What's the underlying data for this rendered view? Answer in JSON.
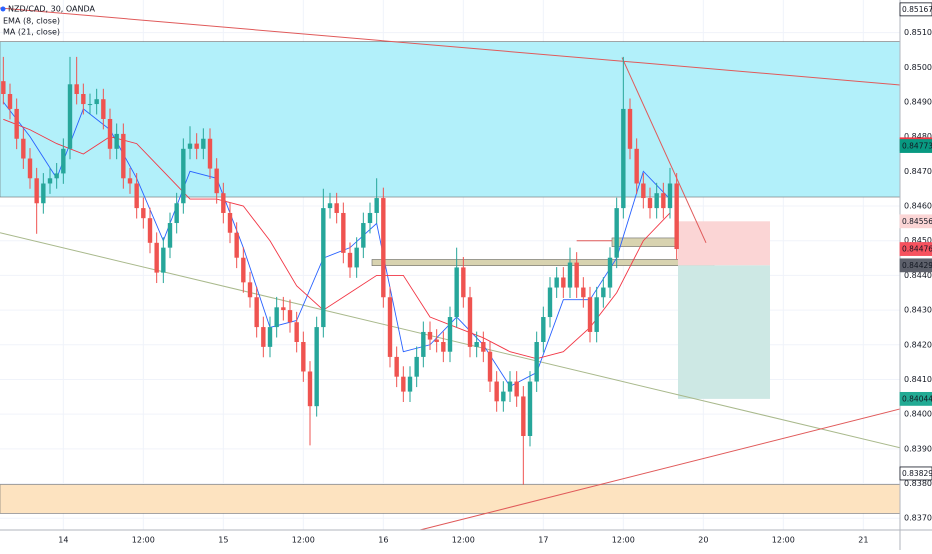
{
  "chart_data": {
    "type": "candlestick",
    "title": "NZD/CAD, 30, OANDA",
    "up_color": "#26a69a",
    "down_color": "#ef5350",
    "xlim": [
      0,
      135
    ],
    "ylim": [
      0.83666,
      0.85194
    ],
    "grid": true,
    "xticks": [
      {
        "value": 9.5,
        "label": "14"
      },
      {
        "value": 21.5,
        "label": "12:00"
      },
      {
        "value": 33.5,
        "label": "15"
      },
      {
        "value": 45.5,
        "label": "12:00"
      },
      {
        "value": 57.5,
        "label": "16"
      },
      {
        "value": 69.5,
        "label": "12:00"
      },
      {
        "value": 81.5,
        "label": "17"
      },
      {
        "value": 93.5,
        "label": "12:00"
      },
      {
        "value": 105.5,
        "label": "20"
      },
      {
        "value": 117.5,
        "label": "12:00"
      },
      {
        "value": 129.5,
        "label": "21"
      }
    ],
    "yticks": [
      {
        "value": 0.837,
        "label": "0.83700"
      },
      {
        "value": 0.838,
        "label": "0.83800"
      },
      {
        "value": 0.839,
        "label": "0.83900"
      },
      {
        "value": 0.84,
        "label": "0.84000"
      },
      {
        "value": 0.841,
        "label": "0.84100"
      },
      {
        "value": 0.842,
        "label": "0.84200"
      },
      {
        "value": 0.843,
        "label": "0.84300"
      },
      {
        "value": 0.844,
        "label": "0.84400"
      },
      {
        "value": 0.845,
        "label": "0.84500"
      },
      {
        "value": 0.846,
        "label": "0.84600"
      },
      {
        "value": 0.847,
        "label": "0.84700"
      },
      {
        "value": 0.848,
        "label": "0.84800"
      },
      {
        "value": 0.849,
        "label": "0.84900"
      },
      {
        "value": 0.85,
        "label": "0.85000"
      },
      {
        "value": 0.851,
        "label": "0.85100"
      }
    ],
    "open": [
      0.8496,
      0.84923,
      0.8488,
      0.84794,
      0.84737,
      0.8468,
      0.84608,
      0.84665,
      0.8468,
      0.84694,
      0.84765,
      0.84951,
      0.84923,
      0.84894,
      0.84894,
      0.84908,
      0.84851,
      0.84765,
      0.84808,
      0.8468,
      0.84665,
      0.84594,
      0.84565,
      0.84494,
      0.84408,
      0.8448,
      0.84551,
      0.84608,
      0.84765,
      0.8478,
      0.84765,
      0.84794,
      0.84708,
      0.84637,
      0.8458,
      0.84523,
      0.84451,
      0.8438,
      0.84337,
      0.84251,
      0.84194,
      0.84251,
      0.84308,
      0.843,
      0.84265,
      0.84208,
      0.84123,
      0.84023,
      0.84251,
      0.84594,
      0.84608,
      0.8458,
      0.84465,
      0.84423,
      0.8448,
      0.84551,
      0.8458,
      0.84623,
      0.84337,
      0.84165,
      0.84108,
      0.84065,
      0.84108,
      0.84165,
      0.84237,
      0.84215,
      0.84208,
      0.8418,
      0.8428,
      0.84423,
      0.84337,
      0.84194,
      0.84208,
      0.8418,
      0.84094,
      0.84037,
      0.84065,
      0.84094,
      0.84051,
      0.83937,
      0.84094,
      0.84208,
      0.8428,
      0.84365,
      0.84394,
      0.84365,
      0.84437,
      0.84365,
      0.84337,
      0.84237,
      0.84337,
      0.84365,
      0.84451,
      0.84594,
      0.8488,
      0.84765,
      0.84665,
      0.84623,
      0.84594,
      0.84637,
      0.84594,
      0.84665
    ],
    "high": [
      0.8503,
      0.84953,
      0.8491,
      0.84824,
      0.84767,
      0.8471,
      0.84695,
      0.8471,
      0.84724,
      0.84795,
      0.8503,
      0.8503,
      0.84953,
      0.84924,
      0.84938,
      0.84938,
      0.84881,
      0.84838,
      0.84838,
      0.8471,
      0.84695,
      0.84624,
      0.84595,
      0.84524,
      0.8451,
      0.84581,
      0.84638,
      0.84795,
      0.8483,
      0.8481,
      0.84824,
      0.84824,
      0.84738,
      0.84667,
      0.8461,
      0.84553,
      0.84481,
      0.8441,
      0.84367,
      0.84281,
      0.84281,
      0.84338,
      0.84338,
      0.8433,
      0.84295,
      0.84238,
      0.84153,
      0.84281,
      0.8465,
      0.84638,
      0.84638,
      0.8461,
      0.84495,
      0.8451,
      0.84581,
      0.8461,
      0.8468,
      0.84653,
      0.84367,
      0.84195,
      0.84138,
      0.84138,
      0.84195,
      0.84267,
      0.84267,
      0.84245,
      0.84238,
      0.8431,
      0.8448,
      0.84453,
      0.84367,
      0.84238,
      0.84238,
      0.8421,
      0.84124,
      0.84095,
      0.84124,
      0.84124,
      0.84081,
      0.84124,
      0.84238,
      0.8431,
      0.84395,
      0.84424,
      0.84424,
      0.8448,
      0.84467,
      0.84395,
      0.84367,
      0.84367,
      0.84395,
      0.84481,
      0.84624,
      0.8503,
      0.8491,
      0.84795,
      0.84695,
      0.84653,
      0.84667,
      0.84667,
      0.8471,
      0.84695
    ],
    "low": [
      0.84893,
      0.8485,
      0.84764,
      0.84707,
      0.8465,
      0.8452,
      0.84578,
      0.84635,
      0.8465,
      0.84664,
      0.84735,
      0.84893,
      0.84864,
      0.84864,
      0.84864,
      0.84821,
      0.84735,
      0.84735,
      0.8465,
      0.84635,
      0.84564,
      0.84535,
      0.84464,
      0.84378,
      0.84378,
      0.8445,
      0.84521,
      0.84578,
      0.84735,
      0.84735,
      0.84735,
      0.84678,
      0.84607,
      0.8455,
      0.84493,
      0.84421,
      0.8435,
      0.84307,
      0.84221,
      0.84164,
      0.84164,
      0.84221,
      0.8427,
      0.84235,
      0.84178,
      0.84093,
      0.8391,
      0.83993,
      0.84221,
      0.84564,
      0.8455,
      0.84435,
      0.84393,
      0.84393,
      0.8445,
      0.84521,
      0.8455,
      0.84307,
      0.84135,
      0.84078,
      0.84035,
      0.84035,
      0.84078,
      0.84135,
      0.84185,
      0.84178,
      0.8415,
      0.8415,
      0.8425,
      0.84307,
      0.84164,
      0.84164,
      0.8415,
      0.84064,
      0.84007,
      0.84007,
      0.84035,
      0.84021,
      0.83797,
      0.83907,
      0.84064,
      0.84178,
      0.8425,
      0.84335,
      0.84335,
      0.84335,
      0.84335,
      0.84307,
      0.84207,
      0.84207,
      0.84307,
      0.84335,
      0.84421,
      0.84564,
      0.84735,
      0.84635,
      0.84593,
      0.84564,
      0.84564,
      0.84564,
      0.84564,
      0.84446
    ],
    "close": [
      0.84923,
      0.8488,
      0.84794,
      0.84737,
      0.8468,
      0.84608,
      0.84665,
      0.8468,
      0.84694,
      0.84765,
      0.84951,
      0.84923,
      0.84894,
      0.84894,
      0.84908,
      0.84851,
      0.84765,
      0.84808,
      0.8468,
      0.84665,
      0.84594,
      0.84565,
      0.84494,
      0.84408,
      0.8448,
      0.84551,
      0.84608,
      0.84765,
      0.8478,
      0.84765,
      0.84794,
      0.84708,
      0.84637,
      0.8458,
      0.84523,
      0.84451,
      0.8438,
      0.84337,
      0.84251,
      0.84194,
      0.84251,
      0.84308,
      0.843,
      0.84265,
      0.84208,
      0.84123,
      0.84023,
      0.84251,
      0.84594,
      0.84608,
      0.8458,
      0.84465,
      0.84423,
      0.8448,
      0.84551,
      0.8458,
      0.84623,
      0.84337,
      0.84165,
      0.84108,
      0.84065,
      0.84108,
      0.84165,
      0.84237,
      0.84215,
      0.84208,
      0.8418,
      0.8428,
      0.84423,
      0.84337,
      0.84194,
      0.84208,
      0.8418,
      0.84094,
      0.84037,
      0.84065,
      0.84094,
      0.84051,
      0.83937,
      0.84094,
      0.84208,
      0.8428,
      0.84365,
      0.84394,
      0.84365,
      0.84437,
      0.84365,
      0.84337,
      0.84237,
      0.84337,
      0.84365,
      0.84451,
      0.84594,
      0.8488,
      0.84765,
      0.84665,
      0.84623,
      0.84594,
      0.84637,
      0.84594,
      0.84665,
      0.84476
    ],
    "indicators": [
      {
        "name": "EMA (8, close)",
        "color": "#2962ff",
        "x": [
          0,
          4,
          8,
          12,
          16,
          20,
          24,
          28,
          32,
          36,
          40,
          44,
          48,
          52,
          56,
          60,
          64,
          68,
          72,
          76,
          80,
          84,
          88,
          92,
          96,
          100
        ],
        "values": [
          0.849,
          0.848,
          0.8468,
          0.8488,
          0.8482,
          0.8468,
          0.845,
          0.847,
          0.8468,
          0.8448,
          0.8425,
          0.8427,
          0.8445,
          0.8448,
          0.8455,
          0.8418,
          0.842,
          0.8428,
          0.842,
          0.8408,
          0.8412,
          0.8433,
          0.8433,
          0.8445,
          0.847,
          0.8462
        ]
      },
      {
        "name": "MA (21, close)",
        "color": "#f23645",
        "x": [
          0,
          4,
          8,
          12,
          16,
          20,
          24,
          28,
          32,
          36,
          40,
          44,
          48,
          52,
          56,
          60,
          64,
          68,
          72,
          76,
          80,
          84,
          88,
          92,
          96,
          100
        ],
        "values": [
          0.8485,
          0.8482,
          0.8478,
          0.8475,
          0.848,
          0.8478,
          0.847,
          0.8462,
          0.8462,
          0.846,
          0.845,
          0.8437,
          0.843,
          0.8435,
          0.844,
          0.844,
          0.8428,
          0.8425,
          0.8422,
          0.8418,
          0.8416,
          0.8418,
          0.8425,
          0.8435,
          0.845,
          0.8458
        ]
      }
    ],
    "zones": [
      {
        "color": "#b2f0fa",
        "x": [
          0,
          135
        ],
        "y": [
          0.85074,
          0.84626
        ]
      },
      {
        "color": "#fde3c0",
        "x": [
          0,
          135
        ],
        "y": [
          0.83797,
          0.83714
        ]
      },
      {
        "color": "#d8d3b0",
        "x": [
          91.8,
          106.5
        ],
        "y": [
          0.84508,
          0.84483
        ]
      },
      {
        "color": "#d8d3b0",
        "x": [
          55.8,
          107.1
        ],
        "y": [
          0.84446,
          0.84428
        ]
      }
    ],
    "trendlines": [
      {
        "color": "#e05a5a",
        "x": [
          0,
          135
        ],
        "values": [
          0.85171,
          0.84949
        ]
      },
      {
        "color": "#a9b98c",
        "x": [
          0,
          135
        ],
        "values": [
          0.84523,
          0.83903
        ]
      },
      {
        "color": "#e05a5a",
        "x": [
          63,
          135
        ],
        "values": [
          0.83666,
          0.84015
        ]
      },
      {
        "color": "#e05a5a",
        "x": [
          93.3,
          105.9
        ],
        "values": [
          0.85028,
          0.84494
        ]
      },
      {
        "color": "#e05a5a",
        "x": [
          86.5,
          91.8
        ],
        "values": [
          0.845,
          0.845
        ]
      }
    ],
    "position": {
      "x": [
        101.7,
        115.5
      ],
      "stop": 0.84556,
      "entry": 0.84429,
      "target": 0.84044,
      "loss_color": "#fbd5d5",
      "profit_color": "#cde8e4"
    },
    "price_tags": [
      {
        "value": 0.85167,
        "label": "0.85167",
        "color": "#ffffff"
      },
      {
        "value": 0.84778,
        "label": "0.84778",
        "color": "#f23645"
      },
      {
        "value": 0.84773,
        "label": "0.84773",
        "color": "#089981"
      },
      {
        "value": 0.84556,
        "label": "0.84556",
        "color": "#fbd5d5"
      },
      {
        "value": 0.84476,
        "label": "0.84476",
        "color": "#f7525f"
      },
      {
        "value": 0.84429,
        "label": "0.84429",
        "color": "#5d606b"
      },
      {
        "value": 0.84044,
        "label": "0.84044",
        "color": "#22ab94"
      },
      {
        "value": 0.83829,
        "label": "0.83829",
        "color": "#ffffff"
      }
    ]
  }
}
